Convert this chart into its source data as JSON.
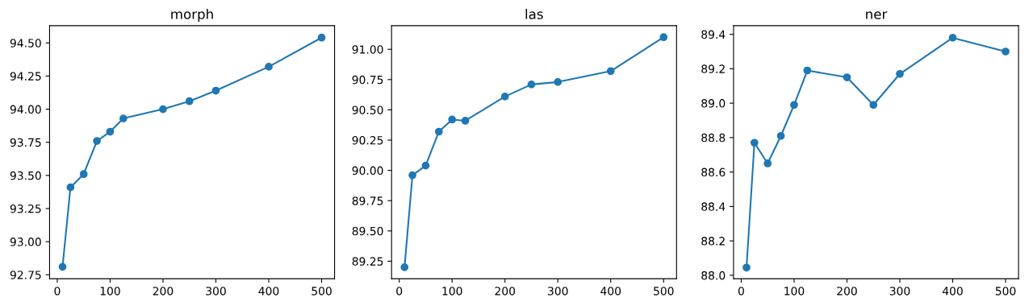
{
  "chart_data": [
    {
      "type": "line",
      "title": "morph",
      "x": [
        10,
        25,
        50,
        75,
        100,
        125,
        200,
        250,
        300,
        400,
        500
      ],
      "marker": "circle",
      "series": [
        {
          "color": "#1f77b4",
          "values": [
            92.81,
            93.41,
            93.51,
            93.76,
            93.83,
            93.93,
            94.0,
            94.06,
            94.14,
            94.32,
            94.54
          ]
        }
      ],
      "xlim": [
        -14.5,
        524.5
      ],
      "xticks": [
        0,
        100,
        200,
        300,
        400,
        500
      ],
      "ylim": [
        92.72,
        94.63
      ],
      "yticks": [
        {
          "value": 92.75,
          "label": "92.75"
        },
        {
          "value": 93.0,
          "label": "93.00"
        },
        {
          "value": 93.25,
          "label": "93.25"
        },
        {
          "value": 93.5,
          "label": "93.50"
        },
        {
          "value": 93.75,
          "label": "93.75"
        },
        {
          "value": 94.0,
          "label": "94.00"
        },
        {
          "value": 94.25,
          "label": "94.25"
        },
        {
          "value": 94.5,
          "label": "94.50"
        }
      ]
    },
    {
      "type": "line",
      "title": "las",
      "x": [
        10,
        25,
        50,
        75,
        100,
        125,
        200,
        250,
        300,
        400,
        500
      ],
      "marker": "circle",
      "series": [
        {
          "color": "#1f77b4",
          "values": [
            89.2,
            89.96,
            90.04,
            90.32,
            90.42,
            90.41,
            90.61,
            90.71,
            90.73,
            90.82,
            91.1
          ]
        }
      ],
      "xlim": [
        -14.5,
        524.5
      ],
      "xticks": [
        0,
        100,
        200,
        300,
        400,
        500
      ],
      "ylim": [
        89.105,
        91.195
      ],
      "yticks": [
        {
          "value": 89.25,
          "label": "89.25"
        },
        {
          "value": 89.5,
          "label": "89.50"
        },
        {
          "value": 89.75,
          "label": "89.75"
        },
        {
          "value": 90.0,
          "label": "90.00"
        },
        {
          "value": 90.25,
          "label": "90.25"
        },
        {
          "value": 90.5,
          "label": "90.50"
        },
        {
          "value": 90.75,
          "label": "90.75"
        },
        {
          "value": 91.0,
          "label": "91.00"
        }
      ]
    },
    {
      "type": "line",
      "title": "ner",
      "x": [
        10,
        25,
        50,
        75,
        100,
        125,
        200,
        250,
        300,
        400,
        500
      ],
      "marker": "circle",
      "series": [
        {
          "color": "#1f77b4",
          "values": [
            88.045,
            88.77,
            88.65,
            88.81,
            88.99,
            89.19,
            89.15,
            88.99,
            89.17,
            89.38,
            89.3
          ]
        }
      ],
      "xlim": [
        -14.5,
        524.5
      ],
      "xticks": [
        0,
        100,
        200,
        300,
        400,
        500
      ],
      "ylim": [
        87.98,
        89.45
      ],
      "yticks": [
        {
          "value": 88.0,
          "label": "88.0"
        },
        {
          "value": 88.2,
          "label": "88.2"
        },
        {
          "value": 88.4,
          "label": "88.4"
        },
        {
          "value": 88.6,
          "label": "88.6"
        },
        {
          "value": 88.8,
          "label": "88.8"
        },
        {
          "value": 89.0,
          "label": "89.0"
        },
        {
          "value": 89.2,
          "label": "89.2"
        },
        {
          "value": 89.4,
          "label": "89.4"
        }
      ]
    }
  ]
}
